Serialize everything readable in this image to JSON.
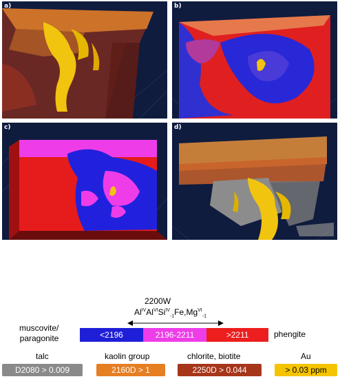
{
  "panels": [
    {
      "label": "a)"
    },
    {
      "label": "b)"
    },
    {
      "label": "c)"
    },
    {
      "label": "d)"
    }
  ],
  "colorbar": {
    "title": "2200W",
    "formula_parts": [
      "Al",
      "IV",
      "Al",
      "VI",
      "Si",
      "IV",
      "-1",
      "Fe,Mg",
      "VI",
      "-1"
    ],
    "left_label_line1": "muscovite/",
    "left_label_line2": "paragonite",
    "right_label": "phengite",
    "segments": [
      {
        "label": "<2196",
        "color": "#1f1fd8"
      },
      {
        "label": "2196-2211",
        "color": "#ee3de8"
      },
      {
        "label": ">2211",
        "color": "#ec1e1e"
      }
    ]
  },
  "legend": [
    {
      "title": "talc",
      "value": "D2080 > 0.009",
      "color": "#8a8a8a"
    },
    {
      "title": "kaolin group",
      "value": "2160D > 1",
      "color": "#e67e22"
    },
    {
      "title": "chlorite, biotite",
      "value": "2250D > 0.044",
      "color": "#a6361a"
    },
    {
      "title": "Au",
      "value": "> 0.03 ppm",
      "color": "#f5c400"
    }
  ]
}
